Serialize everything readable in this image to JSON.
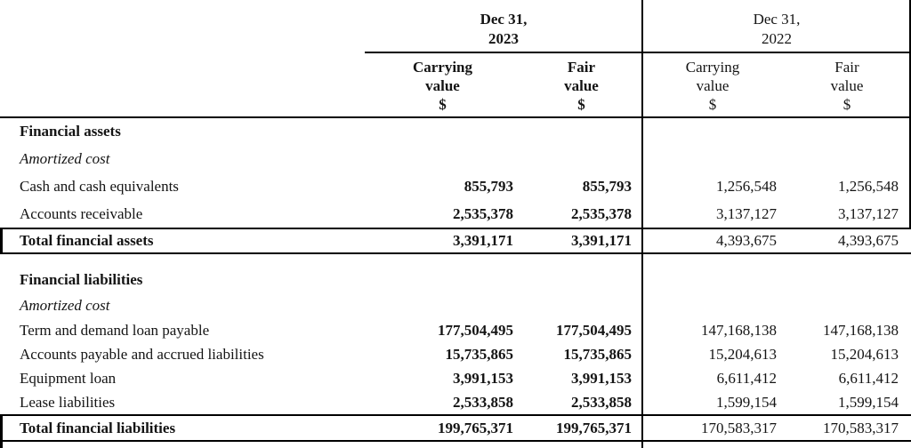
{
  "table": {
    "colors": {
      "text": "#141414",
      "rule": "#000000",
      "background": "#ffffff"
    },
    "header": {
      "groups": [
        {
          "date_line1": "Dec 31,",
          "date_line2": "2023",
          "columns": [
            {
              "line1": "Carrying",
              "line2": "value",
              "line3": "$"
            },
            {
              "line1": "Fair",
              "line2": "value",
              "line3": "$"
            }
          ]
        },
        {
          "date_line1": "Dec 31,",
          "date_line2": "2022",
          "columns": [
            {
              "line1": "Carrying",
              "line2": "value",
              "line3": "$"
            },
            {
              "line1": "Fair",
              "line2": "value",
              "line3": "$"
            }
          ]
        }
      ]
    },
    "sections": [
      {
        "header": "Financial assets",
        "subheader": "Amortized cost",
        "rows": [
          {
            "label": "Cash and cash equivalents",
            "values": [
              "855,793",
              "855,793",
              "1,256,548",
              "1,256,548"
            ]
          },
          {
            "label": "Accounts receivable",
            "values": [
              "2,535,378",
              "2,535,378",
              "3,137,127",
              "3,137,127"
            ]
          }
        ],
        "total": {
          "label": "Total financial assets",
          "values": [
            "3,391,171",
            "3,391,171",
            "4,393,675",
            "4,393,675"
          ]
        }
      },
      {
        "header": "Financial liabilities",
        "subheader": "Amortized cost",
        "rows": [
          {
            "label": "Term and demand loan payable",
            "values": [
              "177,504,495",
              "177,504,495",
              "147,168,138",
              "147,168,138"
            ]
          },
          {
            "label": "Accounts payable and accrued liabilities",
            "values": [
              "15,735,865",
              "15,735,865",
              "15,204,613",
              "15,204,613"
            ]
          },
          {
            "label": "Equipment loan",
            "values": [
              "3,991,153",
              "3,991,153",
              "6,611,412",
              "6,611,412"
            ]
          },
          {
            "label": "Lease liabilities",
            "values": [
              "2,533,858",
              "2,533,858",
              "1,599,154",
              "1,599,154"
            ]
          }
        ],
        "total": {
          "label": "Total financial liabilities",
          "values": [
            "199,765,371",
            "199,765,371",
            "170,583,317",
            "170,583,317"
          ]
        }
      }
    ]
  }
}
